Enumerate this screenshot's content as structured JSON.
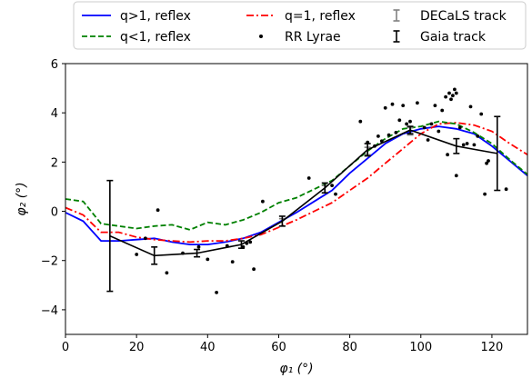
{
  "chart_data": {
    "type": "line",
    "xlabel": "φ₁ (°)",
    "ylabel": "φ₂ (°)",
    "xlim": [
      0,
      130
    ],
    "ylim": [
      -5,
      6
    ],
    "xticks": [
      0,
      20,
      40,
      60,
      80,
      100,
      120
    ],
    "yticks": [
      -4,
      -2,
      0,
      2,
      4,
      6
    ],
    "tick_labels_x": [
      "0",
      "20",
      "40",
      "60",
      "80",
      "100",
      "120"
    ],
    "tick_labels_y": [
      "−4",
      "−2",
      "0",
      "2",
      "4",
      "6"
    ],
    "grid": false,
    "legend_position": "top",
    "legend": [
      {
        "label": "q>1, reflex",
        "kind": "line",
        "color": "#0000ff",
        "dash": "solid"
      },
      {
        "label": "q=1, reflex",
        "kind": "line",
        "color": "#ff0000",
        "dash": "dashdot"
      },
      {
        "label": "DECaLS track",
        "kind": "errorbar",
        "color": "#808080"
      },
      {
        "label": "q<1, reflex",
        "kind": "line",
        "color": "#008000",
        "dash": "dashed"
      },
      {
        "label": "RR Lyrae",
        "kind": "dot",
        "color": "#000000"
      },
      {
        "label": "Gaia track",
        "kind": "errorbar",
        "color": "#000000"
      }
    ],
    "series": [
      {
        "name": "q>1, reflex",
        "color": "#0000ff",
        "dash": "solid",
        "x": [
          0,
          5,
          10,
          15,
          20,
          25,
          30,
          35,
          40,
          45,
          50,
          55,
          60,
          65,
          70,
          75,
          80,
          85,
          90,
          95,
          100,
          105,
          110,
          115,
          120,
          125,
          130
        ],
        "y": [
          -0.05,
          -0.4,
          -1.2,
          -1.2,
          -1.15,
          -1.1,
          -1.25,
          -1.35,
          -1.35,
          -1.25,
          -1.1,
          -0.85,
          -0.45,
          -0.05,
          0.4,
          0.85,
          1.55,
          2.15,
          2.75,
          3.15,
          3.35,
          3.45,
          3.35,
          3.15,
          2.65,
          2.05,
          1.45
        ]
      },
      {
        "name": "q=1, reflex",
        "color": "#ff0000",
        "dash": "dashdot",
        "x": [
          0,
          5,
          10,
          15,
          20,
          25,
          30,
          35,
          40,
          45,
          50,
          55,
          60,
          65,
          70,
          75,
          80,
          85,
          90,
          95,
          100,
          105,
          110,
          115,
          120,
          125,
          130
        ],
        "y": [
          0.15,
          -0.15,
          -0.85,
          -0.85,
          -1.05,
          -1.15,
          -1.2,
          -1.25,
          -1.2,
          -1.2,
          -1.1,
          -0.95,
          -0.65,
          -0.35,
          0.0,
          0.35,
          0.85,
          1.35,
          1.95,
          2.55,
          3.15,
          3.55,
          3.6,
          3.5,
          3.25,
          2.75,
          2.3
        ]
      },
      {
        "name": "q<1, reflex",
        "color": "#008000",
        "dash": "dashed",
        "x": [
          0,
          5,
          10,
          15,
          20,
          25,
          30,
          35,
          40,
          45,
          50,
          55,
          60,
          65,
          70,
          75,
          80,
          85,
          90,
          95,
          100,
          105,
          110,
          115,
          120,
          125,
          130
        ],
        "y": [
          0.5,
          0.4,
          -0.5,
          -0.6,
          -0.7,
          -0.6,
          -0.55,
          -0.75,
          -0.45,
          -0.55,
          -0.35,
          -0.05,
          0.35,
          0.55,
          0.9,
          1.25,
          1.85,
          2.45,
          2.95,
          3.35,
          3.45,
          3.65,
          3.55,
          3.2,
          2.75,
          2.1,
          1.5
        ]
      }
    ],
    "gaia_track": {
      "name": "Gaia track",
      "color": "#000000",
      "x": [
        12.5,
        25,
        37,
        49.5,
        61,
        73,
        85,
        97,
        110,
        121.5
      ],
      "y": [
        -1.0,
        -1.8,
        -1.7,
        -1.35,
        -0.4,
        0.95,
        2.5,
        3.3,
        2.65,
        2.35
      ],
      "err": [
        2.25,
        0.35,
        0.15,
        0.15,
        0.2,
        0.2,
        0.25,
        0.15,
        0.3,
        1.5
      ]
    },
    "decals_track": {
      "name": "DECaLS track",
      "color": "#808080",
      "x": [
        61,
        73,
        85,
        97
      ],
      "y": [
        -0.45,
        0.9,
        2.45,
        3.25
      ],
      "err": [
        0.15,
        0.15,
        0.15,
        0.15
      ]
    },
    "rr_lyrae": {
      "name": "RR Lyrae",
      "color": "#000000",
      "points": [
        [
          20,
          -1.75
        ],
        [
          22.5,
          -1.1
        ],
        [
          26,
          0.05
        ],
        [
          28.5,
          -2.5
        ],
        [
          33,
          -1.7
        ],
        [
          37.5,
          -1.45
        ],
        [
          40,
          -1.95
        ],
        [
          42.5,
          -3.3
        ],
        [
          45.5,
          -1.4
        ],
        [
          47,
          -2.05
        ],
        [
          50,
          -1.45
        ],
        [
          51,
          -1.3
        ],
        [
          52,
          -1.25
        ],
        [
          53,
          -2.35
        ],
        [
          55.5,
          0.4
        ],
        [
          68.5,
          1.35
        ],
        [
          75,
          1.05
        ],
        [
          76,
          0.7
        ],
        [
          83,
          3.65
        ],
        [
          85,
          2.8
        ],
        [
          87,
          2.65
        ],
        [
          88,
          3.05
        ],
        [
          89,
          2.85
        ],
        [
          90,
          4.2
        ],
        [
          91,
          3.1
        ],
        [
          92,
          4.35
        ],
        [
          93,
          3.2
        ],
        [
          94,
          3.7
        ],
        [
          95,
          4.3
        ],
        [
          96,
          3.55
        ],
        [
          97,
          3.65
        ],
        [
          99,
          4.4
        ],
        [
          101,
          3.4
        ],
        [
          102,
          2.9
        ],
        [
          103,
          3.55
        ],
        [
          104,
          4.3
        ],
        [
          105,
          3.25
        ],
        [
          106,
          4.1
        ],
        [
          107,
          4.65
        ],
        [
          107.5,
          2.3
        ],
        [
          108,
          4.8
        ],
        [
          108.5,
          4.55
        ],
        [
          109,
          4.7
        ],
        [
          109.5,
          4.95
        ],
        [
          110,
          4.8
        ],
        [
          110,
          1.45
        ],
        [
          111,
          3.4
        ],
        [
          112,
          2.7
        ],
        [
          113,
          2.75
        ],
        [
          114,
          4.25
        ],
        [
          115,
          2.7
        ],
        [
          116,
          3.05
        ],
        [
          117,
          3.95
        ],
        [
          118.5,
          1.95
        ],
        [
          119,
          2.05
        ],
        [
          118,
          0.7
        ],
        [
          124,
          0.9
        ]
      ]
    }
  }
}
